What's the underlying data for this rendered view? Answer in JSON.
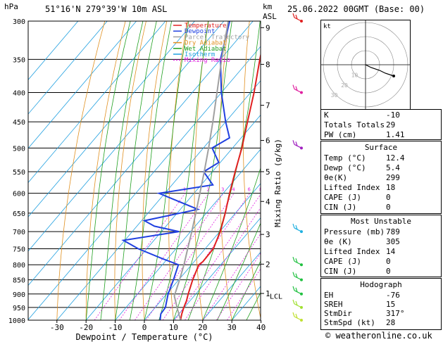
{
  "header": {
    "hpa_label": "hPa",
    "location": "51°16'N 279°39'W 10m ASL",
    "km_label": "km",
    "asl_label": "ASL",
    "datetime": "25.06.2022 00GMT (Base: 00)"
  },
  "footer": {
    "credit": "© weatheronline.co.uk"
  },
  "chart_data": {
    "type": "line",
    "subtype": "skew-T log-P diagram",
    "xlabel": "Dewpoint / Temperature (°C)",
    "ylabel_left": "hPa",
    "ylabel_right": "Mixing Ratio (g/kg)",
    "x_ticks": [
      -30,
      -20,
      -10,
      0,
      10,
      20,
      30,
      40
    ],
    "pressure_levels": [
      300,
      350,
      400,
      450,
      500,
      550,
      600,
      650,
      700,
      750,
      800,
      850,
      900,
      950,
      1000
    ],
    "height_km_ticks": [
      {
        "km": "9",
        "p": 308
      },
      {
        "km": "8",
        "p": 357
      },
      {
        "km": "7",
        "p": 421
      },
      {
        "km": "6",
        "p": 485
      },
      {
        "km": "5",
        "p": 550
      },
      {
        "km": "4",
        "p": 620
      },
      {
        "km": "3",
        "p": 708
      },
      {
        "km": "2",
        "p": 798
      },
      {
        "km": "1",
        "p": 898
      }
    ],
    "lcl_label": "LCL",
    "lcl_pressure": 907,
    "mixing_ratio_labels": [
      "1",
      "2",
      "3",
      "4",
      "6",
      "8",
      "10",
      "15",
      "20",
      "25"
    ],
    "legend": [
      {
        "name": "Temperature",
        "color": "#e02020"
      },
      {
        "name": "Dewpoint",
        "color": "#2040e0"
      },
      {
        "name": "Parcel Trajectory",
        "color": "#a0a0a0"
      },
      {
        "name": "Dry Adiabat",
        "color": "#e09020"
      },
      {
        "name": "Wet Adiabat",
        "color": "#20a020"
      },
      {
        "name": "Isotherm",
        "color": "#20a0e0"
      },
      {
        "name": "Mixing Ratio",
        "color": "#e020e0"
      }
    ],
    "series": [
      {
        "name": "Temperature",
        "color": "#e02020",
        "points": [
          [
            1000,
            12.4
          ],
          [
            975,
            11
          ],
          [
            950,
            9.8
          ],
          [
            925,
            8.8
          ],
          [
            900,
            7.4
          ],
          [
            850,
            4.8
          ],
          [
            800,
            2.5
          ],
          [
            790,
            3.0
          ],
          [
            750,
            2.8
          ],
          [
            700,
            0.2
          ],
          [
            650,
            -3.5
          ],
          [
            600,
            -7.8
          ],
          [
            550,
            -12.2
          ],
          [
            500,
            -16.8
          ],
          [
            450,
            -22.5
          ],
          [
            400,
            -28.8
          ],
          [
            350,
            -36.5
          ],
          [
            300,
            -44.8
          ]
        ]
      },
      {
        "name": "Dewpoint",
        "color": "#2040e0",
        "points": [
          [
            1000,
            5.4
          ],
          [
            975,
            3.8
          ],
          [
            950,
            3.5
          ],
          [
            925,
            2.0
          ],
          [
            900,
            0.5
          ],
          [
            850,
            -1.8
          ],
          [
            800,
            -4.5
          ],
          [
            780,
            -12.0
          ],
          [
            750,
            -23.0
          ],
          [
            725,
            -30.5
          ],
          [
            700,
            -14.0
          ],
          [
            685,
            -24.0
          ],
          [
            670,
            -29.0
          ],
          [
            640,
            -14.0
          ],
          [
            600,
            -32.0
          ],
          [
            580,
            -16.0
          ],
          [
            550,
            -23.0
          ],
          [
            530,
            -20.5
          ],
          [
            500,
            -27.0
          ],
          [
            480,
            -24.0
          ],
          [
            450,
            -30.0
          ],
          [
            400,
            -40.0
          ],
          [
            350,
            -50.0
          ],
          [
            300,
            -58.0
          ]
        ]
      },
      {
        "name": "Parcel Trajectory",
        "color": "#a0a0a0",
        "points": [
          [
            1000,
            12.4
          ],
          [
            950,
            7.5
          ],
          [
            907,
            3.2
          ],
          [
            850,
            0.3
          ],
          [
            800,
            -2.6
          ],
          [
            750,
            -6.0
          ],
          [
            700,
            -9.6
          ],
          [
            650,
            -13.6
          ],
          [
            600,
            -18.0
          ],
          [
            550,
            -22.8
          ],
          [
            500,
            -28.2
          ],
          [
            450,
            -34.4
          ],
          [
            400,
            -41.5
          ],
          [
            350,
            -49.6
          ],
          [
            300,
            -58.5
          ]
        ]
      }
    ],
    "wind_barbs": [
      {
        "p": 1000,
        "color": "#c0e030"
      },
      {
        "p": 950,
        "color": "#a0e030"
      },
      {
        "p": 900,
        "color": "#20c040"
      },
      {
        "p": 850,
        "color": "#20c040"
      },
      {
        "p": 800,
        "color": "#20c040"
      },
      {
        "p": 700,
        "color": "#20b0e0"
      },
      {
        "p": 500,
        "color": "#a020c0"
      },
      {
        "p": 400,
        "color": "#e020a0"
      },
      {
        "p": 300,
        "color": "#e02020"
      }
    ],
    "hodograph": {
      "label": "kt",
      "ring_labels": [
        "10",
        "20",
        "30"
      ],
      "points": [
        [
          0,
          0
        ],
        [
          4,
          -2
        ],
        [
          10,
          -4
        ],
        [
          14,
          -6
        ],
        [
          20,
          -8
        ]
      ]
    }
  },
  "indices": {
    "top": [
      {
        "key": "K",
        "value": "-10"
      },
      {
        "key": "Totals Totals",
        "value": "29"
      },
      {
        "key": "PW (cm)",
        "value": "1.41"
      }
    ],
    "surface": {
      "title": "Surface",
      "rows": [
        {
          "key": "Temp (°C)",
          "value": "12.4"
        },
        {
          "key": "Dewp (°C)",
          "value": "5.4"
        },
        {
          "key": "θe(K)",
          "value": "299"
        },
        {
          "key": "Lifted Index",
          "value": "18"
        },
        {
          "key": "CAPE (J)",
          "value": "0"
        },
        {
          "key": "CIN (J)",
          "value": "0"
        }
      ]
    },
    "most_unstable": {
      "title": "Most Unstable",
      "rows": [
        {
          "key": "Pressure (mb)",
          "value": "789"
        },
        {
          "key": "θe (K)",
          "value": "305"
        },
        {
          "key": "Lifted Index",
          "value": "14"
        },
        {
          "key": "CAPE (J)",
          "value": "0"
        },
        {
          "key": "CIN (J)",
          "value": "0"
        }
      ]
    },
    "hodograph": {
      "title": "Hodograph",
      "rows": [
        {
          "key": "EH",
          "value": "-76"
        },
        {
          "key": "SREH",
          "value": "15"
        },
        {
          "key": "StmDir",
          "value": "317°"
        },
        {
          "key": "StmSpd (kt)",
          "value": "28"
        }
      ]
    }
  }
}
